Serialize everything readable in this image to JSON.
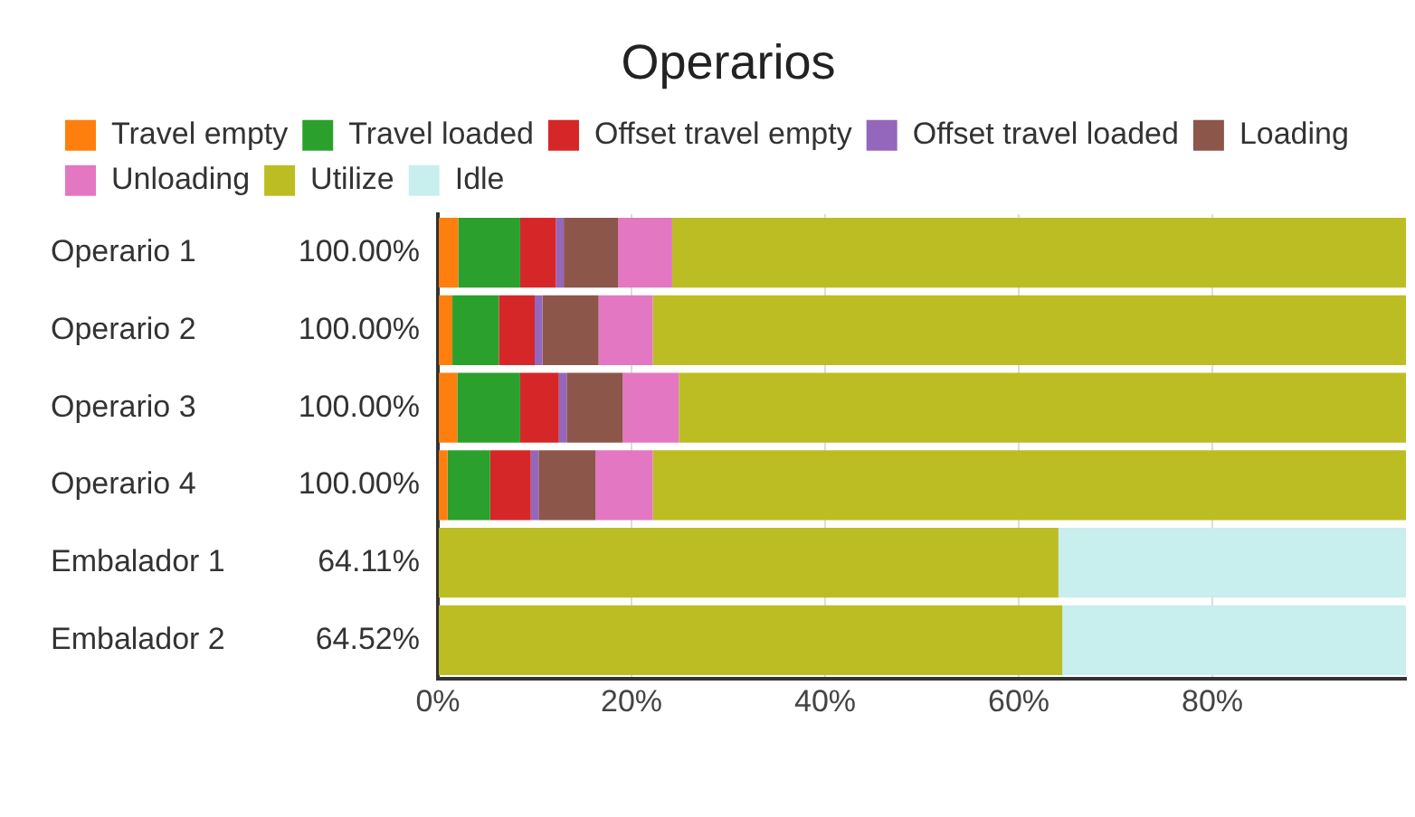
{
  "chart_data": {
    "type": "bar",
    "orientation": "horizontal",
    "stacked": true,
    "title": "Operarios",
    "categories": [
      "Operario 1",
      "Operario 2",
      "Operario 3",
      "Operario 4",
      "Embalador 1",
      "Embalador 2"
    ],
    "annotations": [
      "100.00%",
      "100.00%",
      "100.00%",
      "100.00%",
      "64.11%",
      "64.52%"
    ],
    "series": [
      {
        "name": "Travel empty",
        "color": "#ff7f0e",
        "values": [
          2.1,
          1.5,
          2.0,
          1.0,
          0,
          0
        ]
      },
      {
        "name": "Travel loaded",
        "color": "#2ca02c",
        "values": [
          6.4,
          4.8,
          6.5,
          4.4,
          0,
          0
        ]
      },
      {
        "name": "Offset travel empty",
        "color": "#d62728",
        "values": [
          3.7,
          3.7,
          4.0,
          4.2,
          0,
          0
        ]
      },
      {
        "name": "Offset travel loaded",
        "color": "#9467bd",
        "values": [
          0.8,
          0.8,
          0.8,
          0.8,
          0,
          0
        ]
      },
      {
        "name": "Loading",
        "color": "#8c564b",
        "values": [
          5.6,
          5.8,
          5.8,
          5.9,
          0,
          0
        ]
      },
      {
        "name": "Unloading",
        "color": "#e377c2",
        "values": [
          5.6,
          5.6,
          5.8,
          5.9,
          0,
          0
        ]
      },
      {
        "name": "Utilize",
        "color": "#bcbd22",
        "values": [
          75.8,
          77.8,
          75.1,
          77.8,
          64.1,
          64.5
        ]
      },
      {
        "name": "Idle",
        "color": "#c8eeee",
        "values": [
          0,
          0,
          0,
          0,
          35.9,
          35.5
        ]
      }
    ],
    "xlim": [
      0,
      100
    ],
    "xticks": [
      {
        "value": 0,
        "label": "0%"
      },
      {
        "value": 20,
        "label": "20%"
      },
      {
        "value": 40,
        "label": "40%"
      },
      {
        "value": 60,
        "label": "60%"
      },
      {
        "value": 80,
        "label": "80%"
      }
    ],
    "grid": "x",
    "legend": "top"
  }
}
